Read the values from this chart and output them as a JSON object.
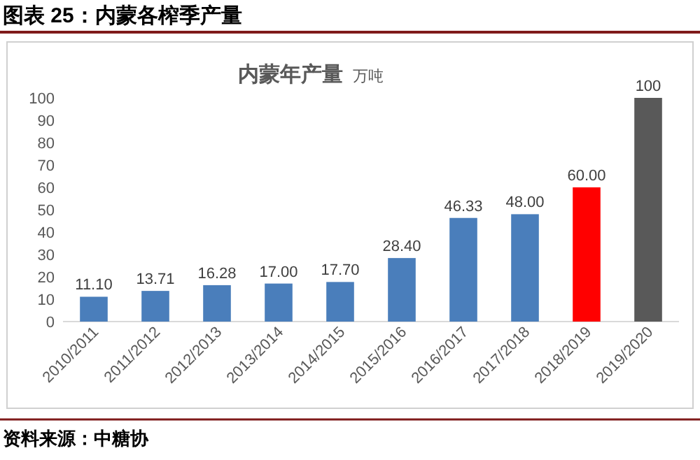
{
  "chart_data": {
    "type": "bar",
    "title": "图表 25：内蒙各榨季产量",
    "subtitle": "内蒙年产量",
    "ylabel": "万吨",
    "categories": [
      "2010/2011",
      "2011/2012",
      "2012/2013",
      "2013/2014",
      "2014/2015",
      "2015/2016",
      "2016/2017",
      "2017/2018",
      "2018/2019",
      "2019/2020"
    ],
    "values": [
      11.1,
      13.71,
      16.28,
      17.0,
      17.7,
      28.4,
      46.33,
      48.0,
      60.0,
      100
    ],
    "colors": [
      "#4a7ebb",
      "#4a7ebb",
      "#4a7ebb",
      "#4a7ebb",
      "#4a7ebb",
      "#4a7ebb",
      "#4a7ebb",
      "#4a7ebb",
      "#ff0000",
      "#595959"
    ],
    "value_labels": [
      "11.10",
      "13.71",
      "16.28",
      "17.00",
      "17.70",
      "28.40",
      "46.33",
      "48.00",
      "60.00",
      "100"
    ],
    "ylim": [
      0,
      100
    ],
    "yticks": [
      0,
      10,
      20,
      30,
      40,
      50,
      60,
      70,
      80,
      90,
      100
    ],
    "grid": false,
    "annotations": [
      "资料来源：中糖协"
    ]
  }
}
